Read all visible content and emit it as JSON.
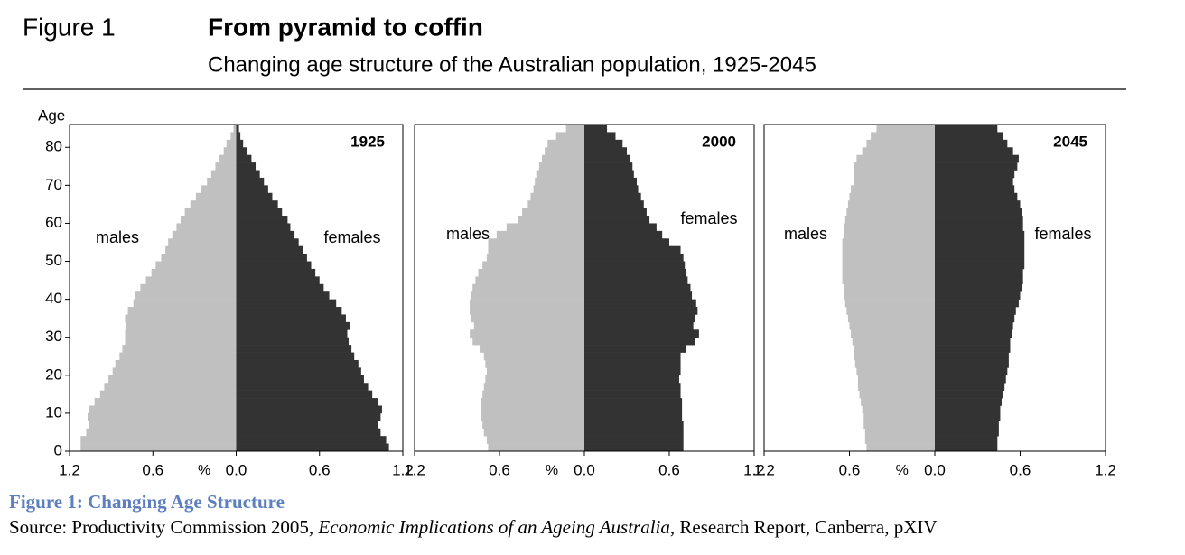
{
  "header": {
    "figure_label": "Figure 1",
    "title": "From pyramid to coffin",
    "subtitle": "Changing age structure of the Australian population, 1925-2045"
  },
  "caption": "Figure 1: Changing Age Structure",
  "source": {
    "prefix": "Source: Productivity Commission 2005, ",
    "italic": "Economic Implications of an Ageing Australia",
    "suffix": ", Research Report, Canberra, pXIV"
  },
  "chart_data": [
    {
      "type": "pyramid",
      "title": "1925",
      "ylabel": "Age",
      "xlabel": "%",
      "x": [
        0,
        2,
        4,
        6,
        8,
        10,
        12,
        14,
        16,
        18,
        20,
        22,
        24,
        26,
        28,
        30,
        32,
        34,
        36,
        38,
        40,
        42,
        44,
        46,
        48,
        50,
        52,
        54,
        56,
        58,
        60,
        62,
        64,
        66,
        68,
        70,
        72,
        74,
        76,
        78,
        80,
        82,
        84
      ],
      "series": [
        {
          "name": "males",
          "color": "#c0c0c0",
          "values": [
            1.12,
            1.12,
            1.08,
            1.06,
            1.07,
            1.06,
            1.02,
            0.98,
            0.95,
            0.92,
            0.89,
            0.87,
            0.84,
            0.82,
            0.8,
            0.8,
            0.79,
            0.8,
            0.78,
            0.74,
            0.73,
            0.69,
            0.65,
            0.61,
            0.58,
            0.54,
            0.51,
            0.49,
            0.46,
            0.43,
            0.4,
            0.37,
            0.33,
            0.29,
            0.25,
            0.21,
            0.18,
            0.15,
            0.12,
            0.09,
            0.07,
            0.04,
            0.02
          ]
        },
        {
          "name": "females",
          "color": "#333333",
          "values": [
            1.1,
            1.08,
            1.04,
            1.02,
            1.04,
            1.05,
            1.02,
            0.98,
            0.95,
            0.92,
            0.9,
            0.88,
            0.85,
            0.83,
            0.81,
            0.8,
            0.82,
            0.79,
            0.76,
            0.72,
            0.67,
            0.63,
            0.6,
            0.57,
            0.54,
            0.51,
            0.48,
            0.45,
            0.42,
            0.39,
            0.37,
            0.33,
            0.3,
            0.26,
            0.23,
            0.2,
            0.17,
            0.14,
            0.11,
            0.08,
            0.05,
            0.03,
            0.02
          ]
        }
      ],
      "xlim": [
        -1.2,
        1.2
      ],
      "xticks": [
        {
          "value": -1.2,
          "label": "1.2"
        },
        {
          "value": -0.6,
          "label": "0.6"
        },
        {
          "value": 0,
          "label": "0.0"
        },
        0.6,
        1.2
      ],
      "ylim": [
        0,
        86
      ],
      "yticks": [
        0,
        10,
        20,
        30,
        40,
        50,
        60,
        70,
        80
      ]
    },
    {
      "type": "pyramid",
      "title": "2000",
      "xlabel": "%",
      "x": [
        0,
        2,
        4,
        6,
        8,
        10,
        12,
        14,
        16,
        18,
        20,
        22,
        24,
        26,
        28,
        30,
        32,
        34,
        36,
        38,
        40,
        42,
        44,
        46,
        48,
        50,
        52,
        54,
        56,
        58,
        60,
        62,
        64,
        66,
        68,
        70,
        72,
        74,
        76,
        78,
        80,
        82,
        84
      ],
      "series": [
        {
          "name": "males",
          "color": "#c0c0c0",
          "values": [
            0.68,
            0.69,
            0.71,
            0.72,
            0.73,
            0.73,
            0.73,
            0.72,
            0.71,
            0.7,
            0.69,
            0.7,
            0.71,
            0.74,
            0.79,
            0.81,
            0.78,
            0.8,
            0.81,
            0.81,
            0.8,
            0.79,
            0.77,
            0.75,
            0.72,
            0.69,
            0.68,
            0.68,
            0.62,
            0.55,
            0.47,
            0.44,
            0.4,
            0.38,
            0.36,
            0.35,
            0.34,
            0.32,
            0.3,
            0.28,
            0.26,
            0.2,
            0.13
          ]
        },
        {
          "name": "females",
          "color": "#333333",
          "values": [
            0.7,
            0.7,
            0.7,
            0.7,
            0.69,
            0.69,
            0.69,
            0.68,
            0.68,
            0.67,
            0.68,
            0.68,
            0.68,
            0.72,
            0.78,
            0.81,
            0.77,
            0.78,
            0.8,
            0.79,
            0.76,
            0.75,
            0.73,
            0.72,
            0.71,
            0.7,
            0.68,
            0.6,
            0.55,
            0.51,
            0.46,
            0.44,
            0.42,
            0.4,
            0.38,
            0.37,
            0.35,
            0.34,
            0.32,
            0.3,
            0.27,
            0.22,
            0.16
          ]
        }
      ],
      "xlim": [
        -1.2,
        1.2
      ],
      "xticks": [
        {
          "value": -1.2,
          "label": "1.2"
        },
        {
          "value": -0.6,
          "label": "0.6"
        },
        {
          "value": 0,
          "label": "0.0"
        },
        0.6,
        1.2
      ],
      "ylim": [
        0,
        86
      ]
    },
    {
      "type": "pyramid",
      "title": "2045",
      "xlabel": "%",
      "x": [
        0,
        2,
        4,
        6,
        8,
        10,
        12,
        14,
        16,
        18,
        20,
        22,
        24,
        26,
        28,
        30,
        32,
        34,
        36,
        38,
        40,
        42,
        44,
        46,
        48,
        50,
        52,
        54,
        56,
        58,
        60,
        62,
        64,
        66,
        68,
        70,
        72,
        74,
        76,
        78,
        80,
        82,
        84
      ],
      "series": [
        {
          "name": "males",
          "color": "#c0c0c0",
          "values": [
            0.48,
            0.49,
            0.49,
            0.5,
            0.5,
            0.51,
            0.52,
            0.53,
            0.54,
            0.54,
            0.55,
            0.56,
            0.57,
            0.57,
            0.58,
            0.59,
            0.6,
            0.61,
            0.62,
            0.63,
            0.64,
            0.64,
            0.65,
            0.65,
            0.65,
            0.65,
            0.65,
            0.65,
            0.64,
            0.64,
            0.63,
            0.62,
            0.61,
            0.6,
            0.59,
            0.57,
            0.57,
            0.57,
            0.55,
            0.51,
            0.48,
            0.45,
            0.41
          ]
        },
        {
          "name": "females",
          "color": "#333333",
          "values": [
            0.44,
            0.44,
            0.45,
            0.45,
            0.46,
            0.46,
            0.47,
            0.48,
            0.49,
            0.5,
            0.51,
            0.52,
            0.52,
            0.53,
            0.53,
            0.54,
            0.55,
            0.56,
            0.57,
            0.59,
            0.6,
            0.61,
            0.62,
            0.62,
            0.63,
            0.63,
            0.63,
            0.63,
            0.63,
            0.62,
            0.62,
            0.61,
            0.6,
            0.58,
            0.56,
            0.55,
            0.56,
            0.58,
            0.59,
            0.55,
            0.51,
            0.48,
            0.44
          ]
        }
      ],
      "xlim": [
        -1.2,
        1.2
      ],
      "xticks": [
        {
          "value": -1.2,
          "label": "1.2"
        },
        {
          "value": -0.6,
          "label": "0.6"
        },
        {
          "value": 0,
          "label": "0.0"
        },
        0.6,
        1.2
      ],
      "ylim": [
        0,
        86
      ]
    }
  ]
}
